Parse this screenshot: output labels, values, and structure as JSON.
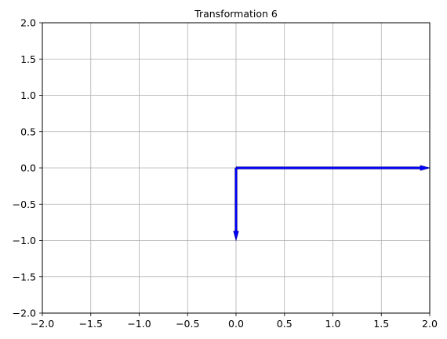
{
  "chart_data": {
    "type": "quiver",
    "title": "Transformation 6",
    "xlabel": "",
    "ylabel": "",
    "xlim": [
      -2.0,
      2.0
    ],
    "ylim": [
      -2.0,
      2.0
    ],
    "xticks": [
      "−2.0",
      "−1.5",
      "−1.0",
      "−0.5",
      "0.0",
      "0.5",
      "1.0",
      "1.5",
      "2.0"
    ],
    "yticks": [
      "−2.0",
      "−1.5",
      "−1.0",
      "−0.5",
      "0.0",
      "0.5",
      "1.0",
      "1.5",
      "2.0"
    ],
    "grid": true,
    "vectors": [
      {
        "x0": 0,
        "y0": 0,
        "dx": 2.0,
        "dy": 0.0
      },
      {
        "x0": 0,
        "y0": 0,
        "dx": 0.0,
        "dy": -1.0
      }
    ],
    "colors": {
      "vector": "#0000ff",
      "grid": "#b0b0b0",
      "axes": "#000000"
    }
  }
}
